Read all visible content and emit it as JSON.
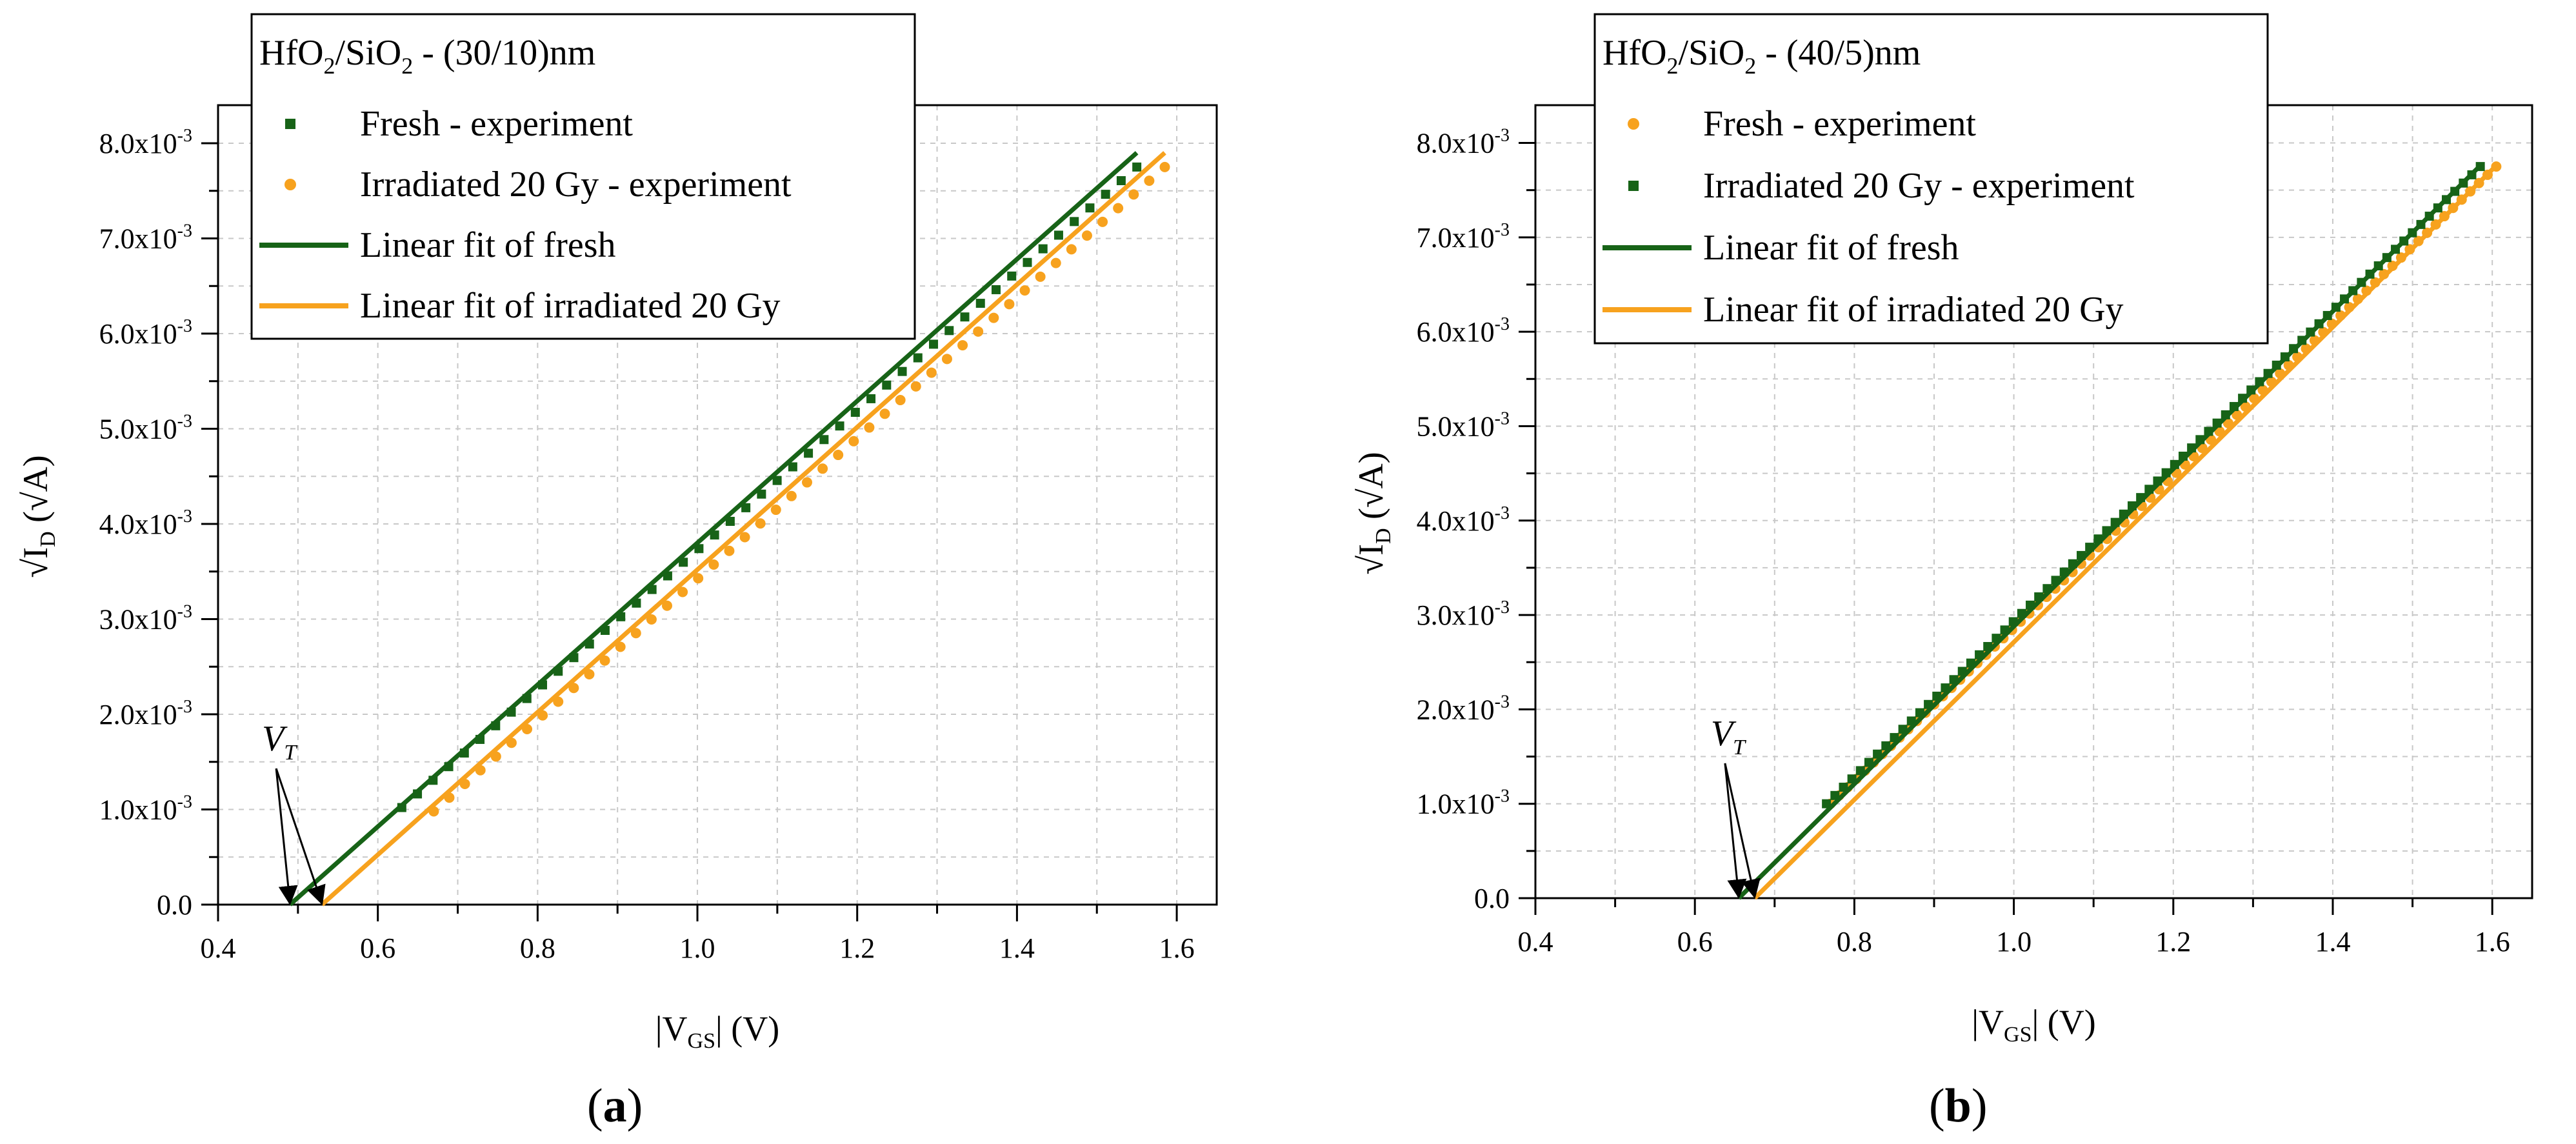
{
  "colors": {
    "fresh": "#176317",
    "irradiated": "#F7A21E",
    "axis": "#000000",
    "grid": "#c8c8c8"
  },
  "chart_data": [
    {
      "panel": "a",
      "panel_label": "a",
      "type": "scatter",
      "legend_title": {
        "pre": "HfO",
        "sub1": "2",
        "mid": "/SiO",
        "sub2": "2",
        "post": " - (30/10)nm"
      },
      "legend_placement": "top-left",
      "xlabel": {
        "bar": "|",
        "v": "V",
        "sub": "GS",
        "tail": "|  (V)"
      },
      "ylabel": {
        "root": "√I",
        "sub": "D",
        "tail": " (√A)"
      },
      "xlim": [
        0.4,
        1.65
      ],
      "ylim": [
        0,
        0.0084
      ],
      "xticks": [
        "0.4",
        "0.6",
        "0.8",
        "1.0",
        "1.2",
        "1.4",
        "1.6"
      ],
      "yticks": [
        "0.0",
        "1.0x10",
        "2.0x10",
        "3.0x10",
        "4.0x10",
        "5.0x10",
        "6.0x10",
        "7.0x10",
        "8.0x10"
      ],
      "ytick_exp": "-3",
      "grid": true,
      "series": [
        {
          "name": "Fresh - experiment",
          "kind": "markers",
          "marker": "square",
          "color_key": "fresh",
          "x_start": 0.63,
          "x_end": 1.55,
          "y_start": 0.00102,
          "y_end": 0.00775,
          "count": 48
        },
        {
          "name": "Irradiated 20 Gy - experiment",
          "kind": "markers",
          "marker": "circle",
          "color_key": "irradiated",
          "x_start": 0.67,
          "x_end": 1.585,
          "y_start": 0.00098,
          "y_end": 0.00775,
          "count": 48
        },
        {
          "name": "Linear fit of fresh",
          "kind": "line",
          "color_key": "fresh",
          "x": [
            0.49,
            1.55
          ],
          "y": [
            0.0,
            0.0079
          ]
        },
        {
          "name": "Linear fit of irradiated 20 Gy",
          "kind": "line",
          "color_key": "irradiated",
          "x": [
            0.53,
            1.585
          ],
          "y": [
            0.0,
            0.0079
          ]
        }
      ],
      "annotation": {
        "text": "V",
        "sub": "T",
        "label_x": 0.455,
        "label_y": 0.00162,
        "arrow_targets": [
          [
            0.49,
            0.0
          ],
          [
            0.53,
            0.0
          ]
        ]
      }
    },
    {
      "panel": "b",
      "panel_label": "b",
      "type": "scatter",
      "legend_title": {
        "pre": "HfO",
        "sub1": "2",
        "mid": "/SiO",
        "sub2": "2",
        "post": " - (40/5)nm"
      },
      "legend_placement": "top-left",
      "xlabel": {
        "bar": "|",
        "v": "V",
        "sub": "GS",
        "tail": "|  (V)"
      },
      "ylabel": {
        "root": "√I",
        "sub": "D",
        "tail": " (√A)"
      },
      "xlim": [
        0.4,
        1.65
      ],
      "ylim": [
        0,
        0.0084
      ],
      "xticks": [
        "0.4",
        "0.6",
        "0.8",
        "1.0",
        "1.2",
        "1.4",
        "1.6"
      ],
      "yticks": [
        "0.0",
        "1.0x10",
        "2.0x10",
        "3.0x10",
        "4.0x10",
        "5.0x10",
        "6.0x10",
        "7.0x10",
        "8.0x10"
      ],
      "ytick_exp": "-3",
      "grid": true,
      "series": [
        {
          "name": "Fresh - experiment",
          "kind": "markers",
          "marker": "circle",
          "color_key": "irradiated",
          "x_start": 0.77,
          "x_end": 1.605,
          "y_start": 0.001,
          "y_end": 0.00775,
          "count": 78
        },
        {
          "name": "Irradiated 20 Gy - experiment",
          "kind": "markers",
          "marker": "square",
          "color_key": "fresh",
          "x_start": 0.765,
          "x_end": 1.585,
          "y_start": 0.001,
          "y_end": 0.00775,
          "count": 78
        },
        {
          "name": "Linear fit of fresh",
          "kind": "line",
          "color_key": "fresh",
          "x": [
            0.655,
            1.585
          ],
          "y": [
            0.0,
            0.00776
          ]
        },
        {
          "name": "Linear fit of irradiated 20 Gy",
          "kind": "line",
          "color_key": "irradiated",
          "x": [
            0.675,
            1.605
          ],
          "y": [
            0.0,
            0.00776
          ]
        }
      ],
      "annotation": {
        "text": "V",
        "sub": "T",
        "label_x": 0.62,
        "label_y": 0.00162,
        "arrow_targets": [
          [
            0.655,
            0.0
          ],
          [
            0.675,
            0.0
          ]
        ]
      }
    }
  ]
}
